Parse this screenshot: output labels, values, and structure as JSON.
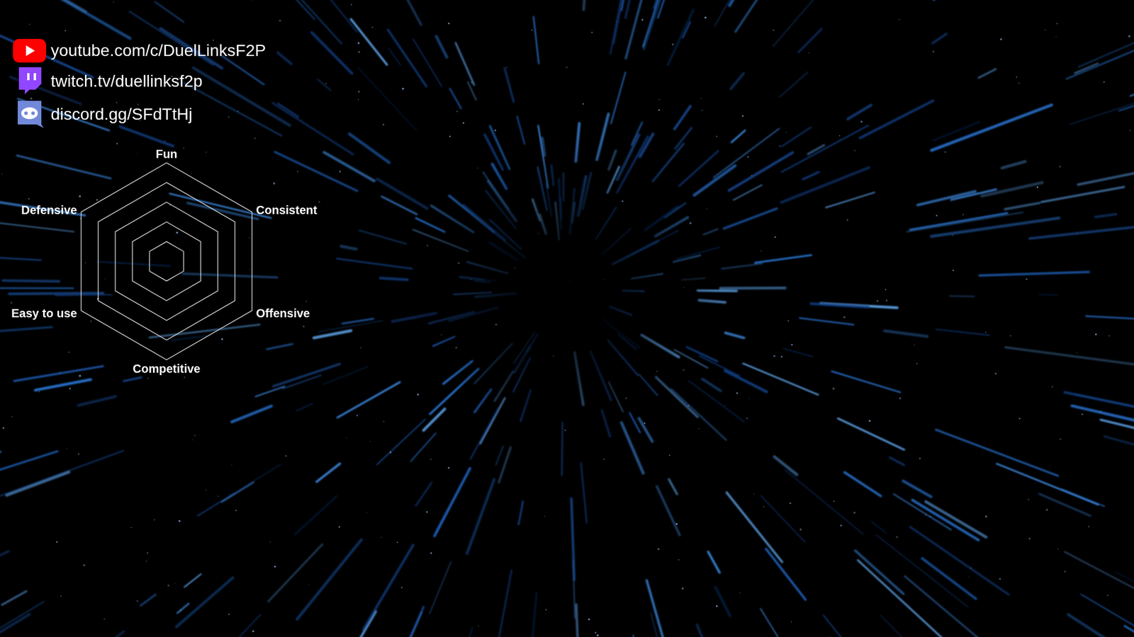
{
  "links": [
    "youtube.com/c/DuelLinksF2P",
    "twitch.tv/duellinksf2p",
    "discord.gg/SFdTtHj"
  ],
  "chart_data": {
    "type": "radar",
    "categories": [
      "Fun",
      "Consistent",
      "Offensive",
      "Competitive",
      "Easy to use",
      "Defensive"
    ],
    "ylim": [
      0,
      5
    ],
    "yticks": [
      1,
      2,
      3,
      4,
      5
    ],
    "grid": true,
    "tick_labels": "x"
  }
}
